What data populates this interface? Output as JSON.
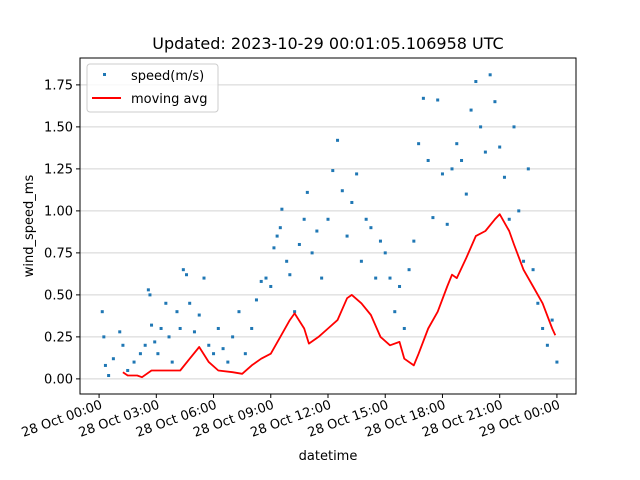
{
  "chart_data": {
    "type": "scatter",
    "title": "Updated: 2023-10-29 00:01:05.106958 UTC",
    "xlabel": "datetime",
    "ylabel": "wind_speed_ms",
    "xlim": [
      "2023-10-27T23:00:00",
      "2023-10-29T01:00:00"
    ],
    "ylim": [
      -0.09,
      1.91
    ],
    "yticks": [
      0.0,
      0.25,
      0.5,
      0.75,
      1.0,
      1.25,
      1.5,
      1.75
    ],
    "ytick_labels": [
      "0.00",
      "0.25",
      "0.50",
      "0.75",
      "1.00",
      "1.25",
      "1.50",
      "1.75"
    ],
    "xticks": [
      "2023-10-28T00:00:00",
      "2023-10-28T03:00:00",
      "2023-10-28T06:00:00",
      "2023-10-28T09:00:00",
      "2023-10-28T12:00:00",
      "2023-10-28T15:00:00",
      "2023-10-28T18:00:00",
      "2023-10-28T21:00:00",
      "2023-10-29T00:00:00"
    ],
    "xtick_labels": [
      "28 Oct 00:00",
      "28 Oct 03:00",
      "28 Oct 06:00",
      "28 Oct 09:00",
      "28 Oct 12:00",
      "28 Oct 15:00",
      "28 Oct 18:00",
      "28 Oct 21:00",
      "29 Oct 00:00"
    ],
    "grid": "horizontal",
    "legend_position": "top-left",
    "series": [
      {
        "name": "speed(m/s)",
        "kind": "scatter",
        "color": "#1f77b4",
        "points": [
          [
            "2023-10-28T00:10:00",
            0.4
          ],
          [
            "2023-10-28T00:15:00",
            0.25
          ],
          [
            "2023-10-28T00:20:00",
            0.08
          ],
          [
            "2023-10-28T00:30:00",
            0.02
          ],
          [
            "2023-10-28T00:45:00",
            0.12
          ],
          [
            "2023-10-28T01:05:00",
            0.28
          ],
          [
            "2023-10-28T01:15:00",
            0.2
          ],
          [
            "2023-10-28T01:30:00",
            0.05
          ],
          [
            "2023-10-28T01:50:00",
            0.1
          ],
          [
            "2023-10-28T02:10:00",
            0.15
          ],
          [
            "2023-10-28T02:25:00",
            0.2
          ],
          [
            "2023-10-28T02:35:00",
            0.53
          ],
          [
            "2023-10-28T02:40:00",
            0.5
          ],
          [
            "2023-10-28T02:45:00",
            0.32
          ],
          [
            "2023-10-28T02:55:00",
            0.22
          ],
          [
            "2023-10-28T03:05:00",
            0.15
          ],
          [
            "2023-10-28T03:15:00",
            0.3
          ],
          [
            "2023-10-28T03:30:00",
            0.45
          ],
          [
            "2023-10-28T03:40:00",
            0.25
          ],
          [
            "2023-10-28T03:50:00",
            0.1
          ],
          [
            "2023-10-28T04:05:00",
            0.4
          ],
          [
            "2023-10-28T04:15:00",
            0.3
          ],
          [
            "2023-10-28T04:25:00",
            0.65
          ],
          [
            "2023-10-28T04:35:00",
            0.62
          ],
          [
            "2023-10-28T04:45:00",
            0.45
          ],
          [
            "2023-10-28T05:00:00",
            0.28
          ],
          [
            "2023-10-28T05:15:00",
            0.38
          ],
          [
            "2023-10-28T05:30:00",
            0.6
          ],
          [
            "2023-10-28T05:45:00",
            0.2
          ],
          [
            "2023-10-28T06:00:00",
            0.15
          ],
          [
            "2023-10-28T06:15:00",
            0.3
          ],
          [
            "2023-10-28T06:30:00",
            0.18
          ],
          [
            "2023-10-28T06:45:00",
            0.1
          ],
          [
            "2023-10-28T07:00:00",
            0.25
          ],
          [
            "2023-10-28T07:20:00",
            0.4
          ],
          [
            "2023-10-28T07:40:00",
            0.15
          ],
          [
            "2023-10-28T08:00:00",
            0.3
          ],
          [
            "2023-10-28T08:15:00",
            0.47
          ],
          [
            "2023-10-28T08:30:00",
            0.58
          ],
          [
            "2023-10-28T08:45:00",
            0.6
          ],
          [
            "2023-10-28T09:00:00",
            0.55
          ],
          [
            "2023-10-28T09:10:00",
            0.78
          ],
          [
            "2023-10-28T09:20:00",
            0.85
          ],
          [
            "2023-10-28T09:30:00",
            0.9
          ],
          [
            "2023-10-28T09:35:00",
            1.01
          ],
          [
            "2023-10-28T09:50:00",
            0.7
          ],
          [
            "2023-10-28T10:00:00",
            0.62
          ],
          [
            "2023-10-28T10:15:00",
            0.4
          ],
          [
            "2023-10-28T10:30:00",
            0.8
          ],
          [
            "2023-10-28T10:45:00",
            0.95
          ],
          [
            "2023-10-28T10:55:00",
            1.11
          ],
          [
            "2023-10-28T11:10:00",
            0.75
          ],
          [
            "2023-10-28T11:25:00",
            0.88
          ],
          [
            "2023-10-28T11:40:00",
            0.6
          ],
          [
            "2023-10-28T12:00:00",
            0.95
          ],
          [
            "2023-10-28T12:15:00",
            1.24
          ],
          [
            "2023-10-28T12:30:00",
            1.42
          ],
          [
            "2023-10-28T12:45:00",
            1.12
          ],
          [
            "2023-10-28T13:00:00",
            0.85
          ],
          [
            "2023-10-28T13:15:00",
            1.05
          ],
          [
            "2023-10-28T13:30:00",
            1.22
          ],
          [
            "2023-10-28T13:45:00",
            0.7
          ],
          [
            "2023-10-28T14:00:00",
            0.95
          ],
          [
            "2023-10-28T14:15:00",
            0.9
          ],
          [
            "2023-10-28T14:30:00",
            0.6
          ],
          [
            "2023-10-28T14:45:00",
            0.82
          ],
          [
            "2023-10-28T15:00:00",
            0.75
          ],
          [
            "2023-10-28T15:15:00",
            0.6
          ],
          [
            "2023-10-28T15:30:00",
            0.4
          ],
          [
            "2023-10-28T15:45:00",
            0.55
          ],
          [
            "2023-10-28T16:00:00",
            0.3
          ],
          [
            "2023-10-28T16:15:00",
            0.65
          ],
          [
            "2023-10-28T16:30:00",
            0.82
          ],
          [
            "2023-10-28T16:45:00",
            1.4
          ],
          [
            "2023-10-28T17:00:00",
            1.67
          ],
          [
            "2023-10-28T17:15:00",
            1.3
          ],
          [
            "2023-10-28T17:30:00",
            0.96
          ],
          [
            "2023-10-28T17:45:00",
            1.66
          ],
          [
            "2023-10-28T18:00:00",
            1.22
          ],
          [
            "2023-10-28T18:15:00",
            0.92
          ],
          [
            "2023-10-28T18:30:00",
            1.25
          ],
          [
            "2023-10-28T18:45:00",
            1.4
          ],
          [
            "2023-10-28T19:00:00",
            1.3
          ],
          [
            "2023-10-28T19:15:00",
            1.1
          ],
          [
            "2023-10-28T19:30:00",
            1.6
          ],
          [
            "2023-10-28T19:45:00",
            1.77
          ],
          [
            "2023-10-28T20:00:00",
            1.5
          ],
          [
            "2023-10-28T20:15:00",
            1.35
          ],
          [
            "2023-10-28T20:30:00",
            1.81
          ],
          [
            "2023-10-28T20:45:00",
            1.65
          ],
          [
            "2023-10-28T21:00:00",
            1.38
          ],
          [
            "2023-10-28T21:15:00",
            1.2
          ],
          [
            "2023-10-28T21:30:00",
            0.95
          ],
          [
            "2023-10-28T21:45:00",
            1.5
          ],
          [
            "2023-10-28T22:00:00",
            1.0
          ],
          [
            "2023-10-28T22:15:00",
            0.7
          ],
          [
            "2023-10-28T22:30:00",
            1.25
          ],
          [
            "2023-10-28T22:45:00",
            0.65
          ],
          [
            "2023-10-28T23:00:00",
            0.45
          ],
          [
            "2023-10-28T23:15:00",
            0.3
          ],
          [
            "2023-10-28T23:30:00",
            0.2
          ],
          [
            "2023-10-28T23:45:00",
            0.35
          ],
          [
            "2023-10-29T00:00:00",
            0.1
          ]
        ]
      },
      {
        "name": "moving avg",
        "kind": "line",
        "color": "#ff0000",
        "points": [
          [
            "2023-10-28T01:15:00",
            0.04
          ],
          [
            "2023-10-28T01:30:00",
            0.02
          ],
          [
            "2023-10-28T02:00:00",
            0.02
          ],
          [
            "2023-10-28T02:15:00",
            0.01
          ],
          [
            "2023-10-28T02:45:00",
            0.05
          ],
          [
            "2023-10-28T03:15:00",
            0.05
          ],
          [
            "2023-10-28T03:45:00",
            0.05
          ],
          [
            "2023-10-28T04:15:00",
            0.05
          ],
          [
            "2023-10-28T04:45:00",
            0.12
          ],
          [
            "2023-10-28T05:15:00",
            0.19
          ],
          [
            "2023-10-28T05:45:00",
            0.1
          ],
          [
            "2023-10-28T06:15:00",
            0.05
          ],
          [
            "2023-10-28T07:00:00",
            0.04
          ],
          [
            "2023-10-28T07:30:00",
            0.03
          ],
          [
            "2023-10-28T08:00:00",
            0.08
          ],
          [
            "2023-10-28T08:30:00",
            0.12
          ],
          [
            "2023-10-28T09:00:00",
            0.15
          ],
          [
            "2023-10-28T09:30:00",
            0.25
          ],
          [
            "2023-10-28T10:00:00",
            0.35
          ],
          [
            "2023-10-28T10:15:00",
            0.39
          ],
          [
            "2023-10-28T10:45:00",
            0.3
          ],
          [
            "2023-10-28T11:00:00",
            0.21
          ],
          [
            "2023-10-28T11:30:00",
            0.25
          ],
          [
            "2023-10-28T12:00:00",
            0.3
          ],
          [
            "2023-10-28T12:30:00",
            0.35
          ],
          [
            "2023-10-28T13:00:00",
            0.48
          ],
          [
            "2023-10-28T13:15:00",
            0.5
          ],
          [
            "2023-10-28T13:45:00",
            0.45
          ],
          [
            "2023-10-28T14:15:00",
            0.38
          ],
          [
            "2023-10-28T14:45:00",
            0.25
          ],
          [
            "2023-10-28T15:15:00",
            0.2
          ],
          [
            "2023-10-28T15:45:00",
            0.22
          ],
          [
            "2023-10-28T16:00:00",
            0.12
          ],
          [
            "2023-10-28T16:30:00",
            0.08
          ],
          [
            "2023-10-28T16:45:00",
            0.15
          ],
          [
            "2023-10-28T17:15:00",
            0.3
          ],
          [
            "2023-10-28T17:45:00",
            0.4
          ],
          [
            "2023-10-28T18:15:00",
            0.55
          ],
          [
            "2023-10-28T18:30:00",
            0.62
          ],
          [
            "2023-10-28T18:45:00",
            0.6
          ],
          [
            "2023-10-28T19:15:00",
            0.72
          ],
          [
            "2023-10-28T19:45:00",
            0.85
          ],
          [
            "2023-10-28T20:15:00",
            0.88
          ],
          [
            "2023-10-28T20:45:00",
            0.95
          ],
          [
            "2023-10-28T21:00:00",
            0.98
          ],
          [
            "2023-10-28T21:30:00",
            0.88
          ],
          [
            "2023-10-28T21:45:00",
            0.8
          ],
          [
            "2023-10-28T22:15:00",
            0.65
          ],
          [
            "2023-10-28T22:45:00",
            0.55
          ],
          [
            "2023-10-28T23:15:00",
            0.45
          ],
          [
            "2023-10-28T23:45:00",
            0.3
          ],
          [
            "2023-10-28T23:55:00",
            0.26
          ]
        ]
      }
    ]
  }
}
